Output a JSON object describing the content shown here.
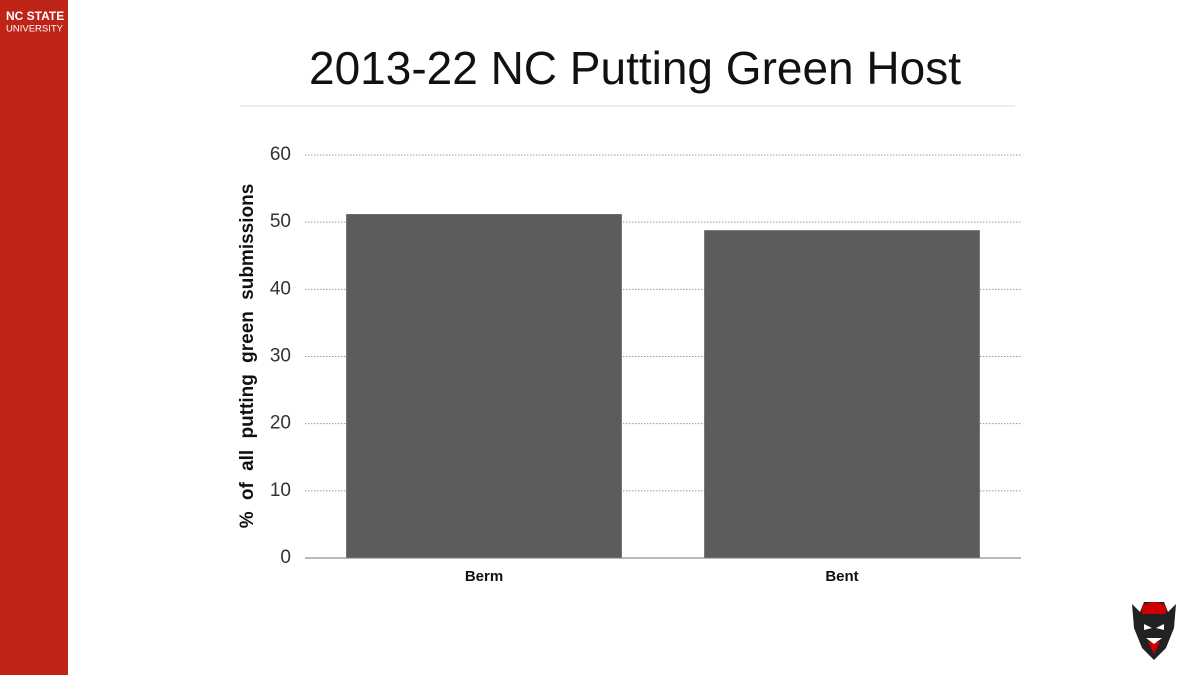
{
  "branding": {
    "line1": "NC STATE",
    "line2": "UNIVERSITY"
  },
  "chart_data": {
    "type": "bar",
    "title": "2013-22 NC Putting Green Host",
    "y_label": "% of all putting green submissions",
    "categories": [
      "Berm",
      "Bent"
    ],
    "values": [
      51.2,
      48.8
    ],
    "color": "#5c5c5c",
    "ylim": [
      0,
      60
    ],
    "yticks": [
      0,
      10,
      20,
      30,
      40,
      50,
      60
    ],
    "grid": true
  }
}
